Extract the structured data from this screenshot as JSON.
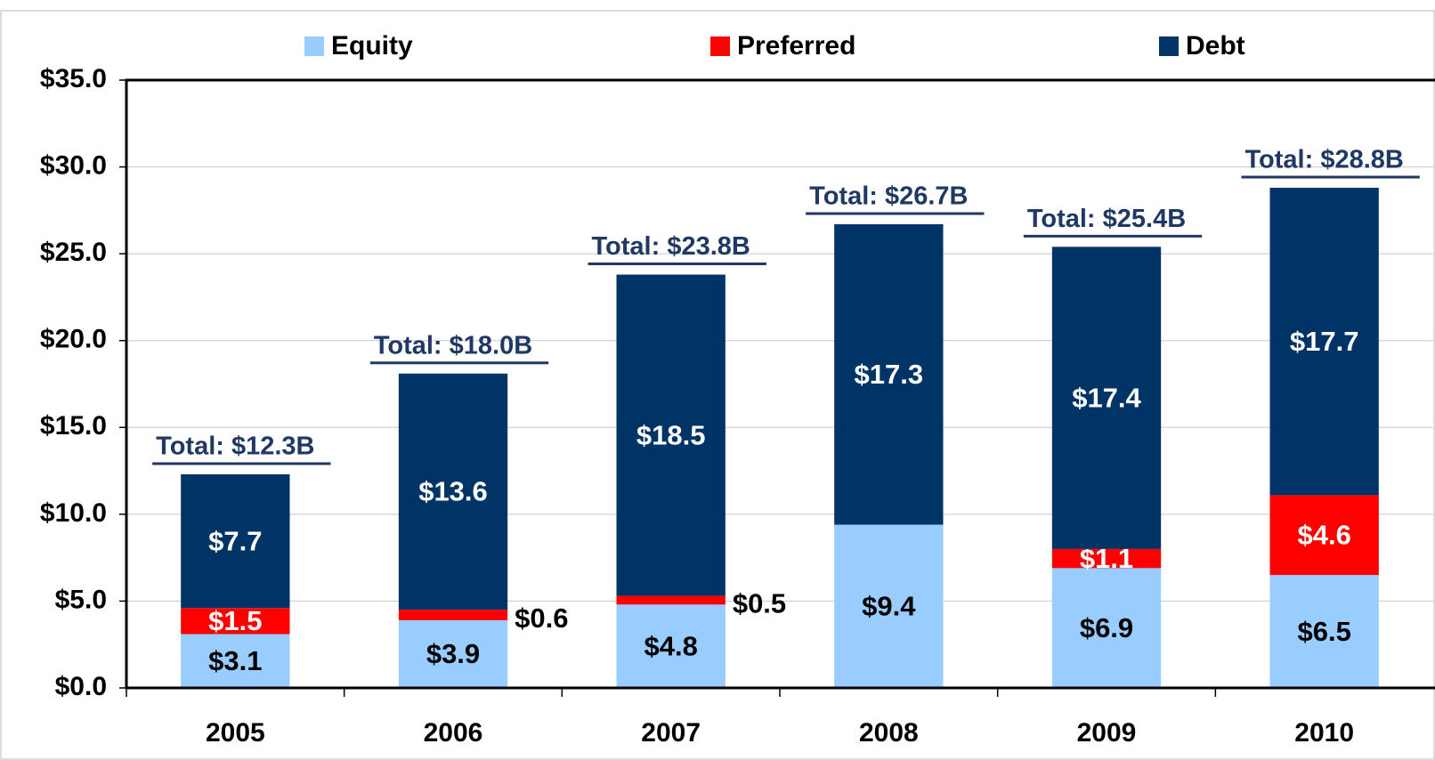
{
  "chart_data": {
    "type": "stacked_bar",
    "categories": [
      "2005",
      "2006",
      "2007",
      "2008",
      "2009",
      "2010"
    ],
    "series": [
      {
        "name": "Equity",
        "color": "#99ccff",
        "values": [
          3.1,
          3.9,
          4.8,
          9.4,
          6.9,
          6.5
        ],
        "value_labels": [
          "$3.1",
          "$3.9",
          "$4.8",
          "$9.4",
          "$6.9",
          "$6.5"
        ]
      },
      {
        "name": "Preferred",
        "color": "#ff0000",
        "values": [
          1.5,
          0.6,
          0.5,
          null,
          1.1,
          4.6
        ],
        "value_labels": [
          "$1.5",
          "$0.6",
          "$0.5",
          null,
          "$1.1",
          "$4.6"
        ]
      },
      {
        "name": "Debt",
        "color": "#003366",
        "values": [
          7.7,
          13.6,
          18.5,
          17.3,
          17.4,
          17.7
        ],
        "value_labels": [
          "$7.7",
          "$13.6",
          "$18.5",
          "$17.3",
          "$17.4",
          "$17.7"
        ]
      }
    ],
    "annotations": [
      "Total: $12.3B",
      "Total: $18.0B",
      "Total: $23.8B",
      "Total: $26.7B",
      "Total: $25.4B",
      "Total: $28.8B"
    ],
    "ylim": [
      0,
      35
    ],
    "yticks": [
      {
        "value": 0,
        "label": "$0.0"
      },
      {
        "value": 5,
        "label": "$5.0"
      },
      {
        "value": 10,
        "label": "$10.0"
      },
      {
        "value": 15,
        "label": "$15.0"
      },
      {
        "value": 20,
        "label": "$20.0"
      },
      {
        "value": 25,
        "label": "$25.0"
      },
      {
        "value": 30,
        "label": "$30.0"
      },
      {
        "value": 35,
        "label": "$35.0"
      }
    ],
    "grid": true,
    "legend": "top"
  }
}
